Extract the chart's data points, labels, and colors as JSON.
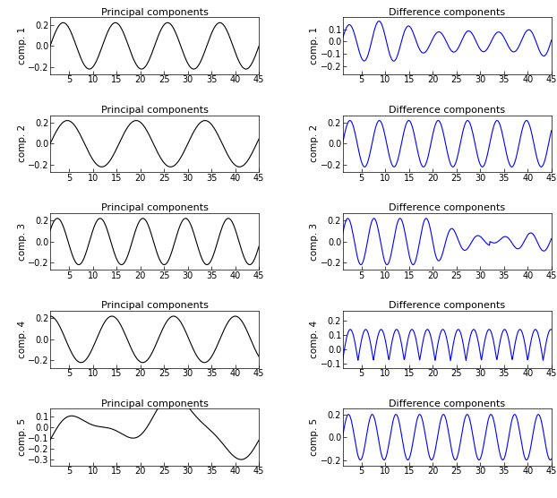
{
  "title_left": "Principal components",
  "title_right": "Difference components",
  "color_left": "#000000",
  "color_right": "#0000FF",
  "xlim": [
    1,
    45
  ],
  "xticks": [
    5,
    10,
    15,
    20,
    25,
    30,
    35,
    40,
    45
  ],
  "figsize": [
    6.22,
    5.56
  ],
  "dpi": 100,
  "n_rows": 5
}
